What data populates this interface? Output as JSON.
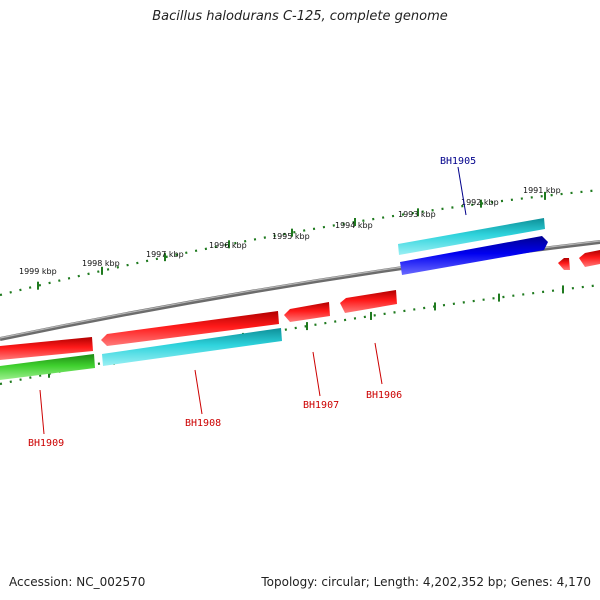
{
  "title": "Bacillus halodurans C-125, complete genome",
  "footer": {
    "accession": "Accession: NC_002570",
    "summary": "Topology: circular; Length: 4,202,352 bp; Genes: 4,170"
  },
  "colors": {
    "backbone": "#8a8a8a",
    "tick": "#1f7a1f",
    "label_forward": "#00008b",
    "label_reverse": "#cc0000",
    "gene_red": "#e60000",
    "gene_cyan": "#22c8d2",
    "gene_blue": "#0000dd",
    "gene_green": "#33bb22"
  },
  "ticks": [
    {
      "label": "1991 kbp"
    },
    {
      "label": "1992 kbp"
    },
    {
      "label": "1993 kbp"
    },
    {
      "label": "1994 kbp"
    },
    {
      "label": "1995 kbp"
    },
    {
      "label": "1996 kbp"
    },
    {
      "label": "1997 kbp"
    },
    {
      "label": "1998 kbp"
    },
    {
      "label": "1999 kbp"
    }
  ],
  "gene_labels": [
    {
      "name": "BH1905",
      "strand": "forward"
    },
    {
      "name": "BH1906",
      "strand": "reverse"
    },
    {
      "name": "BH1907",
      "strand": "reverse"
    },
    {
      "name": "BH1908",
      "strand": "reverse"
    },
    {
      "name": "BH1909",
      "strand": "reverse"
    }
  ]
}
